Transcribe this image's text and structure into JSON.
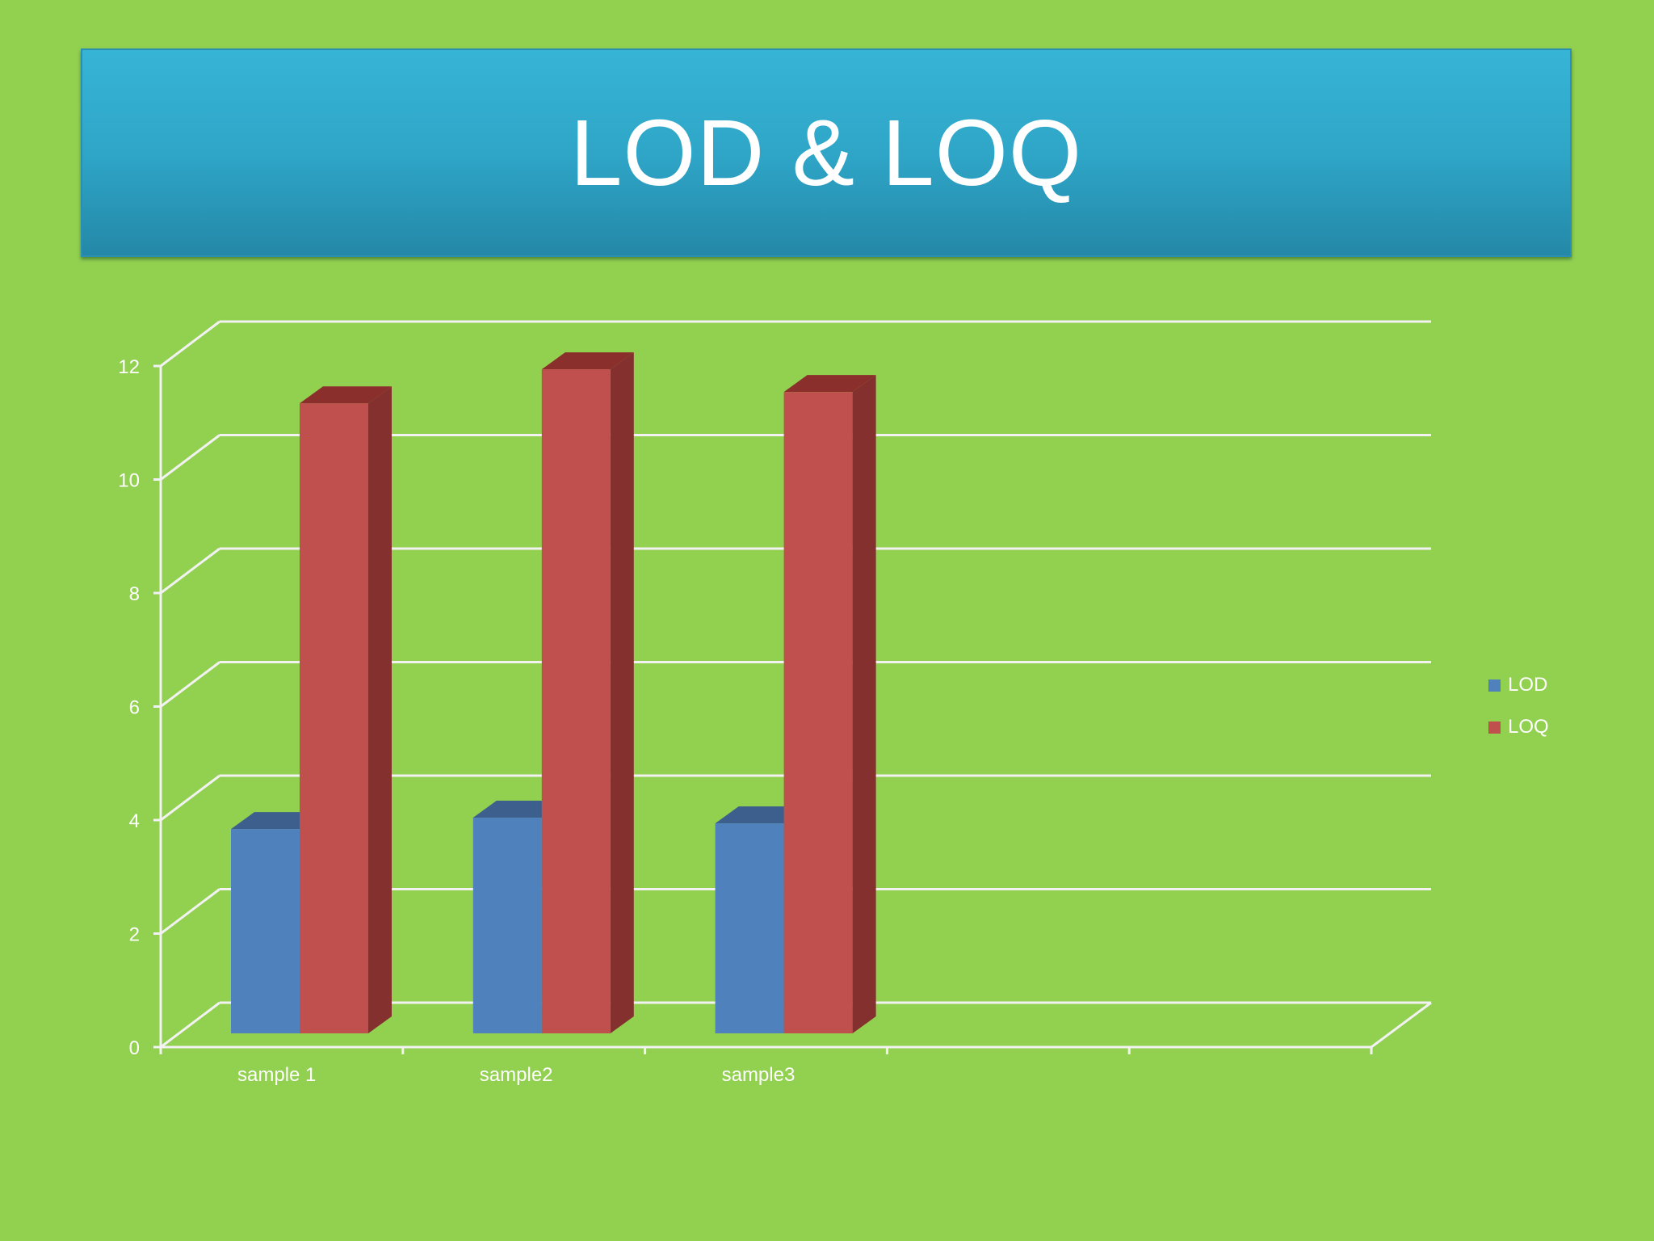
{
  "slide": {
    "title": "LOD & LOQ"
  },
  "colors": {
    "background": "#92d050",
    "banner": "#2fa6c8",
    "grid": "#f2f2f2",
    "text": "#ffffff"
  },
  "chart_data": {
    "type": "bar",
    "style": "3d-clustered-column",
    "categories": [
      "sample 1",
      "sample2",
      "sample3"
    ],
    "series": [
      {
        "name": "LOD",
        "values": [
          3.6,
          3.8,
          3.7
        ],
        "color": "#4f81bd",
        "side_color": "#3b6291",
        "top_color": "#3c5f8e"
      },
      {
        "name": "LOQ",
        "values": [
          11.1,
          11.7,
          11.3
        ],
        "color": "#c0504d",
        "side_color": "#83302e",
        "top_color": "#8b2f2c"
      }
    ],
    "y_ticks": [
      "0",
      "2",
      "4",
      "6",
      "8",
      "10",
      "12"
    ],
    "ylim": [
      0,
      12
    ],
    "grid": true,
    "legend_position": "right",
    "xlabel": "",
    "ylabel": ""
  }
}
